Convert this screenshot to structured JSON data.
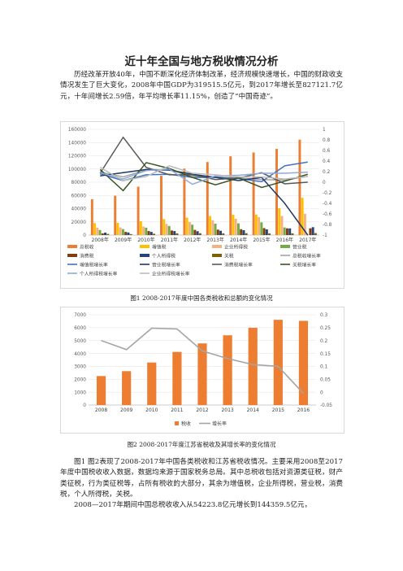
{
  "doc": {
    "title": "近十年全国与地方税收情况分析",
    "intro": "历经改革开放40年，中国不断深化经济体制改革，经济规模快速增长，中国的财政收支情况发生了巨大变化，2008年中国GDP为319515.5亿元，到2017年增长至827121.7亿元，十年间增长2.59倍，年平均增长率11.15%，创造了“中国奇迹”。",
    "caption1": "图1 2008-2017年度中国各类税收和总额的变化情况",
    "caption2": "图2 2008-2017年度江苏省税收及其增长率的变化情况",
    "body1": "图1 图2表现了2008-2017年中国各类税收和江苏省税收情况。主要采用2008至2017年度中国税收收入数据，数据均来源于国家税务总局。其中总税收包括对资源类征税，财产类征税，行为类征税等，占所有税收的大部分，其余为增值税，企业所得税，营业税，消费税，个人所得税，关税。",
    "body2": "2008—2017年期间中国总税收收入从54223.8亿元增长到144359.5亿元，"
  },
  "colors": {
    "total": "#ED7D31",
    "vat": "#FFC000",
    "corp": "#F4B183",
    "business": "#70AD47",
    "consumption": "#843C0C",
    "personal": "#264478",
    "customs": "#7F6000",
    "total_g": "#A5A5A5",
    "vat_g": "#4472C4",
    "business_g": "#1F3864",
    "consumption_g": "#595959",
    "customs_g": "#375623",
    "personal_g": "#8FAADC",
    "corp_g": "#BDBDBD"
  },
  "chart_data": [
    {
      "type": "bar",
      "categories": [
        "2008年",
        "2009年",
        "2010年",
        "2011年",
        "2012年",
        "2013年",
        "2014年",
        "2015年",
        "2016年",
        "2017年"
      ],
      "ylim": [
        0,
        160000
      ],
      "yticks": [
        "0",
        "20000",
        "40000",
        "60000",
        "80000",
        "100000",
        "120000",
        "140000",
        "160000"
      ],
      "y2lim": [
        -1,
        1
      ],
      "y2ticks": [
        "-1",
        "-0.8",
        "-0.6",
        "-0.4",
        "-0.2",
        "0",
        "0.2",
        "0.4",
        "0.6",
        "0.8",
        "1"
      ],
      "series": [
        {
          "name": "总税收",
          "values": [
            54224,
            59522,
            73211,
            89738,
            100614,
            110531,
            119175,
            124922,
            130361,
            144360
          ]
        },
        {
          "name": "增值税",
          "values": [
            17997,
            18481,
            21093,
            24267,
            26416,
            28810,
            30855,
            31109,
            40712,
            56378
          ]
        },
        {
          "name": "企业所得税",
          "values": [
            11176,
            11537,
            12843,
            16770,
            19654,
            22427,
            24642,
            27134,
            28851,
            32111
          ]
        },
        {
          "name": "营业税",
          "values": [
            7626,
            9014,
            11158,
            13679,
            15748,
            17233,
            17782,
            19313,
            11502,
            0
          ]
        },
        {
          "name": "消费税",
          "values": [
            2568,
            4761,
            6072,
            6936,
            7876,
            8231,
            8907,
            10542,
            10217,
            10225
          ]
        },
        {
          "name": "个人所得税",
          "values": [
            3722,
            3949,
            4837,
            6054,
            5820,
            6532,
            7377,
            8617,
            10089,
            11966
          ]
        },
        {
          "name": "关税",
          "values": [
            1770,
            1484,
            2028,
            2559,
            2784,
            2631,
            2843,
            2561,
            2603,
            2998
          ]
        }
      ],
      "growth_series": [
        {
          "name": "总税收增长率",
          "values": [
            0.19,
            0.1,
            0.23,
            0.23,
            0.12,
            0.1,
            0.08,
            0.05,
            0.04,
            0.11
          ]
        },
        {
          "name": "增值税增长率",
          "values": [
            0.16,
            0.03,
            0.14,
            0.15,
            0.09,
            0.09,
            0.07,
            0.01,
            0.31,
            0.38
          ]
        },
        {
          "name": "营业税增长率",
          "values": [
            0.12,
            0.18,
            0.24,
            0.23,
            0.15,
            0.09,
            0.03,
            0.09,
            -0.4,
            -1.0
          ]
        },
        {
          "name": "消费税增长率",
          "values": [
            0.17,
            0.85,
            0.28,
            0.14,
            0.14,
            0.05,
            0.08,
            0.18,
            -0.03,
            0.0
          ]
        },
        {
          "name": "关税增长率",
          "values": [
            0.24,
            -0.16,
            0.37,
            0.26,
            0.09,
            -0.05,
            0.08,
            -0.1,
            0.02,
            0.15
          ]
        },
        {
          "name": "个人所得税增长率",
          "values": [
            0.18,
            0.06,
            0.22,
            0.25,
            -0.04,
            0.12,
            0.13,
            0.17,
            0.17,
            0.19
          ]
        },
        {
          "name": "企业所得税增长率",
          "values": [
            0.28,
            0.03,
            0.11,
            0.31,
            0.17,
            0.14,
            0.1,
            0.1,
            0.06,
            0.11
          ]
        }
      ],
      "legend": [
        "总税收",
        "增值税",
        "企业所得税",
        "营业税",
        "消费税",
        "个人所得税",
        "关税",
        "总税收增长率",
        "增值税增长率",
        "营业税增长率",
        "消费税增长率",
        "关税增长率",
        "个人所得税增长率",
        "企业所得税增长率"
      ]
    },
    {
      "type": "bar",
      "categories": [
        "2008",
        "2009",
        "2010",
        "2011",
        "2012",
        "2013",
        "2014",
        "2015",
        "2016"
      ],
      "ylim": [
        0,
        7000
      ],
      "yticks": [
        "0",
        "1000",
        "2000",
        "3000",
        "4000",
        "5000",
        "6000",
        "7000"
      ],
      "y2lim": [
        -0.05,
        0.3
      ],
      "y2ticks": [
        "-0.05",
        "0",
        "0.05",
        "0.1",
        "0.15",
        "0.2",
        "0.25",
        "0.3"
      ],
      "series": [
        {
          "name": "税收",
          "values": [
            2250,
            2630,
            3300,
            4120,
            4780,
            5410,
            5990,
            6610,
            6530
          ]
        }
      ],
      "growth_series": [
        {
          "name": "增长率",
          "values": [
            0.2,
            0.165,
            0.248,
            0.245,
            0.16,
            0.13,
            0.107,
            0.1,
            -0.005
          ]
        }
      ],
      "legend": [
        "税收",
        "增长率"
      ]
    }
  ]
}
